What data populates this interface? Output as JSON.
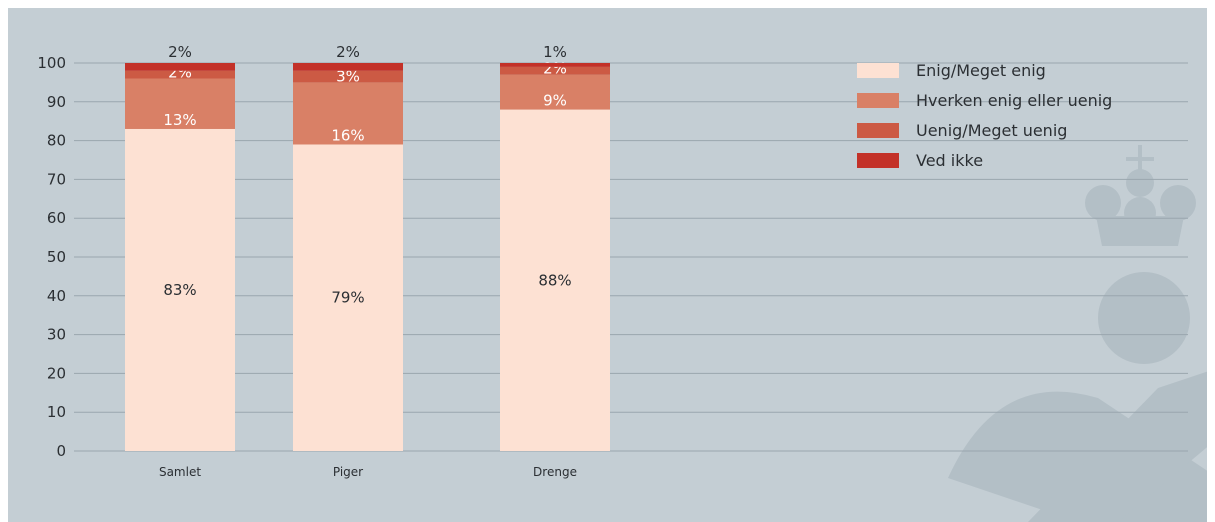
{
  "chart_data": {
    "type": "bar",
    "stacked": true,
    "categories": [
      "Samlet",
      "Piger",
      "Drenge"
    ],
    "series": [
      {
        "name": "Enig/Meget enig",
        "values": [
          83,
          79,
          88
        ],
        "labels": [
          "83%",
          "79%",
          "88%"
        ],
        "color": "#fde1d3"
      },
      {
        "name": "Hverken enig eller uenig",
        "values": [
          13,
          16,
          9
        ],
        "labels": [
          "13%",
          "16%",
          "9%"
        ],
        "color": "#d98066"
      },
      {
        "name": "Uenig/Meget uenig",
        "values": [
          2,
          3,
          2
        ],
        "labels": [
          "2%",
          "3%",
          "2%"
        ],
        "color": "#cc5a44"
      },
      {
        "name": "Ved ikke",
        "values": [
          2,
          2,
          1
        ],
        "labels": [
          "2%",
          "2%",
          "1%"
        ],
        "color": "#c33128"
      }
    ],
    "ylim": [
      0,
      100
    ],
    "yticks": [
      0,
      10,
      20,
      30,
      40,
      50,
      60,
      70,
      80,
      90,
      100
    ],
    "grid": true,
    "legend": "top-right",
    "title": "",
    "xlabel": "",
    "ylabel": ""
  },
  "colors": {
    "background": "#c4ced4",
    "gridline": "#9aa6ae",
    "watermark": "#b3bfc6"
  },
  "watermark_icon": "crown-emblem-icon"
}
